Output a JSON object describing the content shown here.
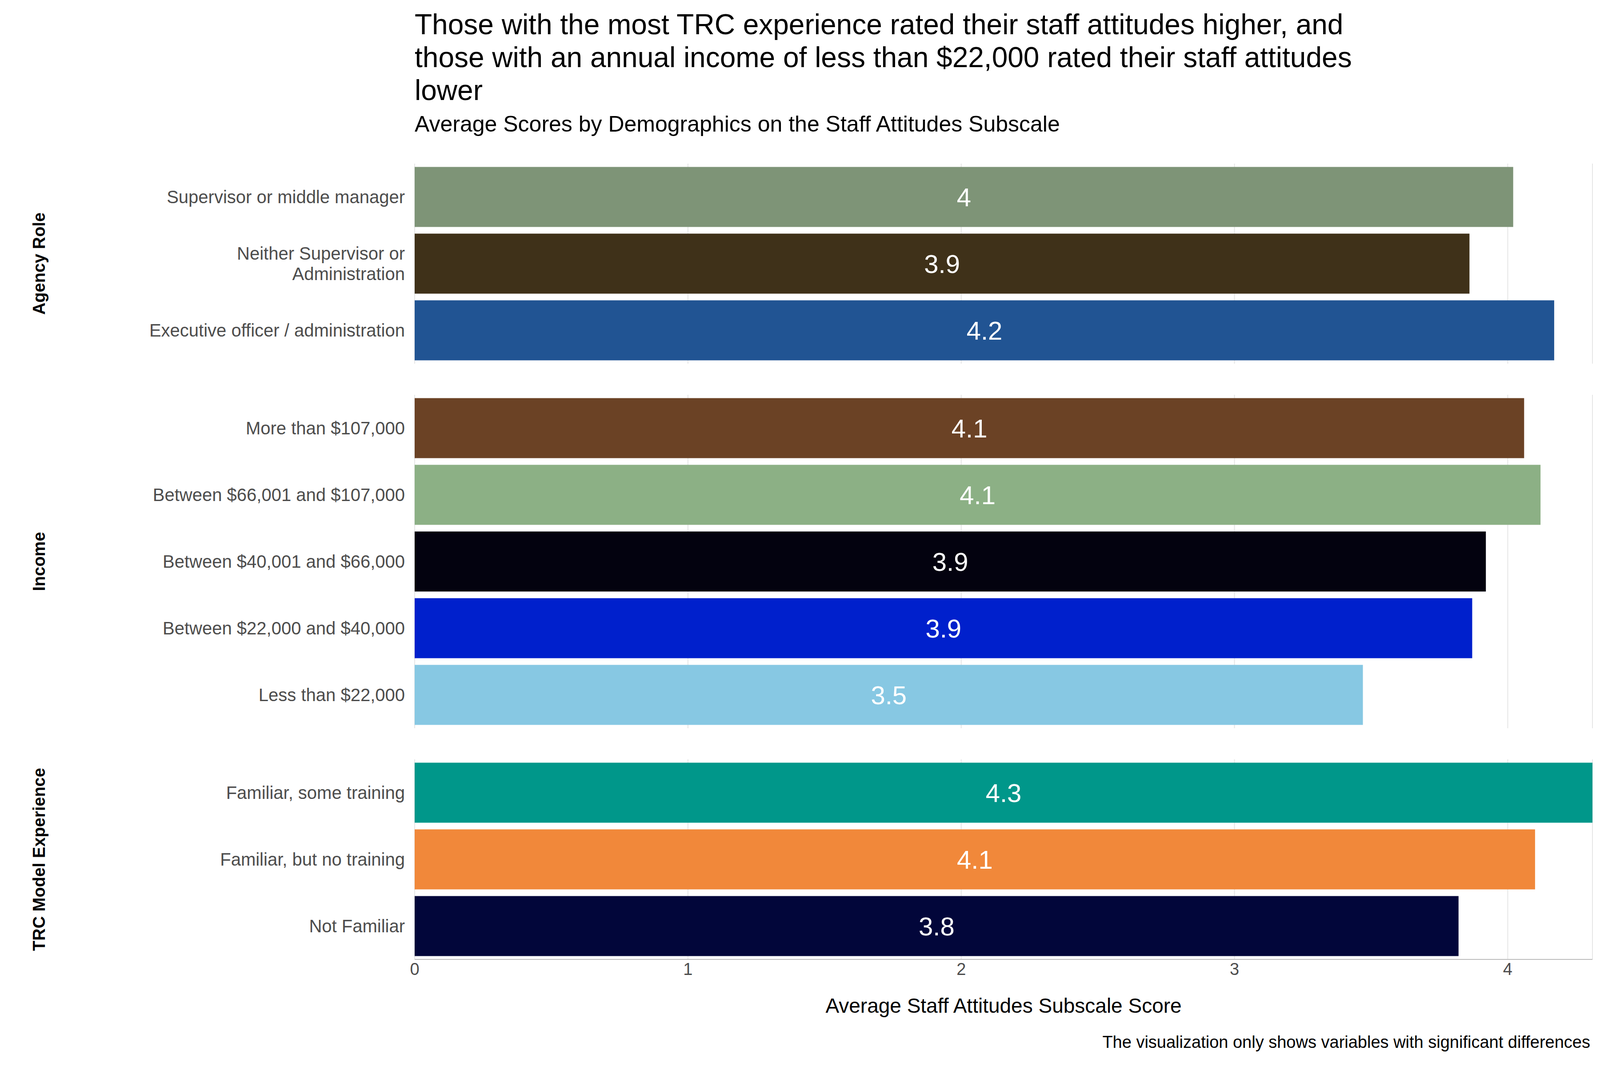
{
  "chart_data": {
    "type": "bar",
    "orientation": "horizontal",
    "title": "Those with the most TRC experience rated their staff attitudes higher, and those with an annual income of less than $22,000 rated their staff attitudes lower",
    "subtitle": "Average Scores by Demographics on the Staff Attitudes Subscale",
    "x_label": "Average Staff Attitudes Subscale Score",
    "caption": "The visualization only shows variables with significant differences",
    "xlim": [
      0,
      4.31
    ],
    "xticks": [
      0,
      1,
      2,
      3,
      4
    ],
    "grid": true,
    "data_labels": true,
    "groups": [
      {
        "name": "Agency Role",
        "categories": [
          "Supervisor or middle manager",
          "Neither Supervisor or Administration",
          "Executive officer / administration"
        ],
        "values": [
          4.02,
          3.86,
          4.17
        ],
        "value_labels": [
          "4",
          "3.9",
          "4.2"
        ],
        "colors": [
          "#7e9477",
          "#3f3119",
          "#215493"
        ]
      },
      {
        "name": "Income",
        "categories": [
          "More than $107,000",
          "Between $66,001 and $107,000",
          "Between $40,001 and $66,000",
          "Between $22,000 and $40,000",
          "Less than $22,000"
        ],
        "values": [
          4.06,
          4.12,
          3.92,
          3.87,
          3.47
        ],
        "value_labels": [
          "4.1",
          "4.1",
          "3.9",
          "3.9",
          "3.5"
        ],
        "colors": [
          "#6b4225",
          "#8cb085",
          "#03020f",
          "#0020cc",
          "#87c8e3"
        ]
      },
      {
        "name": "TRC Model Experience",
        "categories": [
          "Familiar, some training",
          "Familiar, but no training",
          "Not Familiar"
        ],
        "values": [
          4.31,
          4.1,
          3.82
        ],
        "value_labels": [
          "4.3",
          "4.1",
          "3.8"
        ],
        "colors": [
          "#00978a",
          "#f1883a",
          "#02063a"
        ]
      }
    ]
  }
}
